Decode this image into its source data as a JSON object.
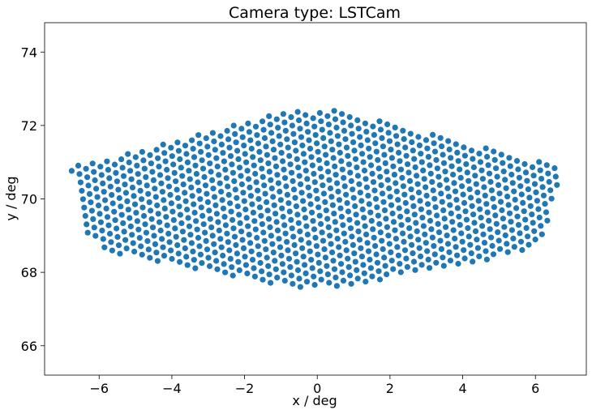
{
  "chart_data": {
    "type": "scatter",
    "title": "Camera type: LSTCam",
    "xlabel": "x / deg",
    "ylabel": "y / deg",
    "xlim": [
      -7.5,
      7.4
    ],
    "ylim": [
      65.2,
      74.8
    ],
    "xticks": [
      -6,
      -4,
      -2,
      0,
      2,
      4,
      6
    ],
    "yticks": [
      66,
      68,
      70,
      72,
      74
    ],
    "grid": false,
    "marker_color": "#1f77b4",
    "camera": {
      "center": [
        0.0,
        70.0
      ],
      "outline_vertices": [
        [
          -6.8,
          70.85
        ],
        [
          -0.85,
          72.4
        ],
        [
          0.7,
          72.4
        ],
        [
          6.75,
          70.85
        ],
        [
          6.25,
          68.9
        ],
        [
          5.5,
          68.5
        ],
        [
          0.7,
          67.6
        ],
        [
          -0.75,
          67.6
        ],
        [
          -5.6,
          68.5
        ],
        [
          -6.3,
          68.9
        ]
      ],
      "row_direction_deg_per_deg": [
        1.0,
        -0.4
      ],
      "pixel_spacing_deg": 0.23,
      "row_spacing_deg": 0.2
    }
  }
}
